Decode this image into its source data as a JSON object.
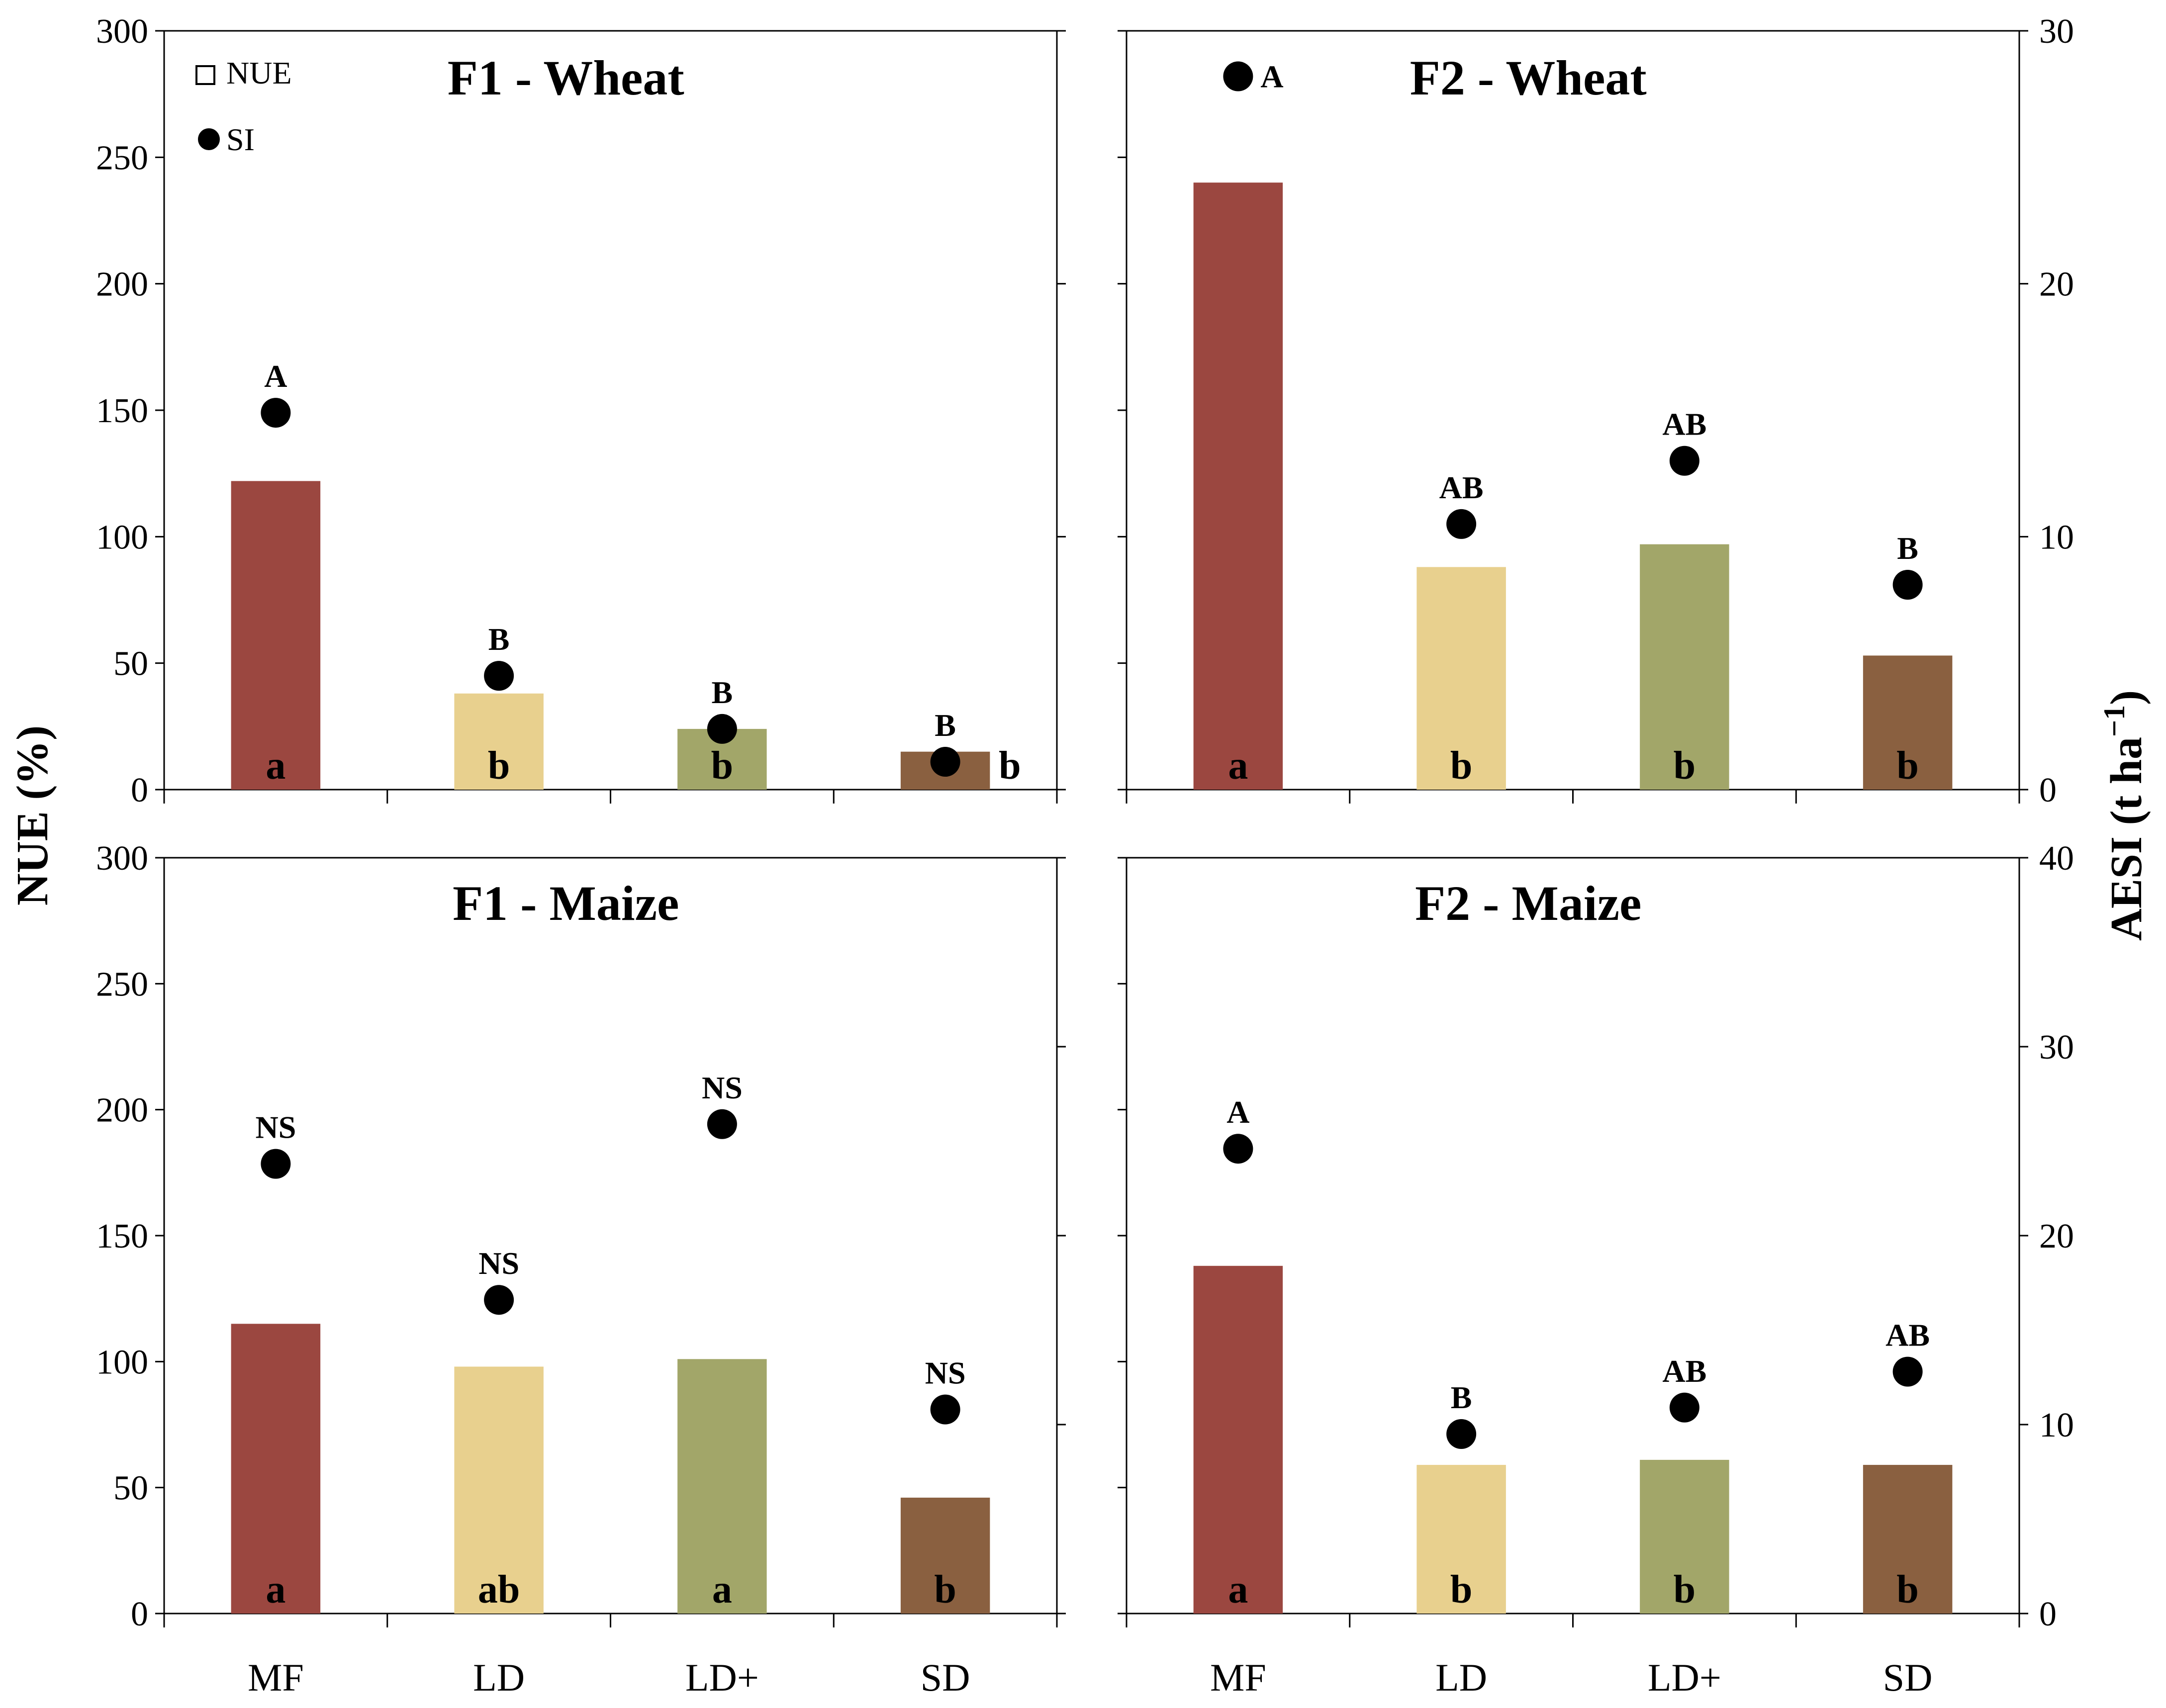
{
  "y_left_label": "NUE (%)",
  "y_right_label_main": "AESI (t ha",
  "y_right_label_sup": "−1",
  "y_right_label_close": ")",
  "legend": {
    "nue": "NUE",
    "si": "SI"
  },
  "colors": {
    "MF": "#9B4740",
    "LD": "#E8D08E",
    "LD+": "#A2A669",
    "SD": "#8A6040"
  },
  "chart_data": [
    {
      "type": "bar",
      "title": "F1 - Wheat",
      "categories": [
        "MF",
        "LD",
        "LD+",
        "SD"
      ],
      "series": [
        {
          "name": "NUE",
          "axis": "left",
          "values": [
            122,
            38,
            24,
            15
          ]
        },
        {
          "name": "SI",
          "axis": "right",
          "type": "scatter",
          "values": [
            14.9,
            4.5,
            2.4,
            1.1
          ]
        }
      ],
      "bar_letters": [
        "a",
        "b",
        "b",
        "b"
      ],
      "point_letters": [
        "A",
        "B",
        "B",
        "B"
      ],
      "ylim_left": [
        0,
        300
      ],
      "ylim_right": [
        0,
        30
      ],
      "yticks_left": [
        0,
        50,
        100,
        150,
        200,
        250,
        300
      ],
      "yticks_right": [
        0,
        10,
        20,
        30
      ]
    },
    {
      "type": "bar",
      "title": "F2 - Wheat",
      "categories": [
        "MF",
        "LD",
        "LD+",
        "SD"
      ],
      "series": [
        {
          "name": "NUE",
          "axis": "left",
          "values": [
            240,
            88,
            97,
            53
          ]
        },
        {
          "name": "SI",
          "axis": "right",
          "type": "scatter",
          "values": [
            28.2,
            10.5,
            13.0,
            8.1
          ]
        }
      ],
      "bar_letters": [
        "a",
        "b",
        "b",
        "b"
      ],
      "point_letters": [
        "A",
        "AB",
        "AB",
        "B"
      ],
      "ylim_left": [
        0,
        300
      ],
      "ylim_right": [
        0,
        30
      ],
      "yticks_left": [
        0,
        50,
        100,
        150,
        200,
        250,
        300
      ],
      "yticks_right": [
        0,
        10,
        20,
        30
      ]
    },
    {
      "type": "bar",
      "title": "F1 - Maize",
      "categories": [
        "MF",
        "LD",
        "LD+",
        "SD"
      ],
      "series": [
        {
          "name": "NUE",
          "axis": "left",
          "values": [
            115,
            98,
            101,
            46
          ]
        },
        {
          "name": "SI",
          "axis": "right",
          "type": "scatter",
          "values": [
            23.8,
            16.6,
            25.9,
            10.8
          ]
        }
      ],
      "bar_letters": [
        "a",
        "ab",
        "a",
        "b"
      ],
      "point_letters": [
        "NS",
        "NS",
        "NS",
        "NS"
      ],
      "ylim_left": [
        0,
        300
      ],
      "ylim_right": [
        0,
        40
      ],
      "yticks_left": [
        0,
        50,
        100,
        150,
        200,
        250,
        300
      ],
      "yticks_right": [
        0,
        10,
        20,
        30,
        40
      ]
    },
    {
      "type": "bar",
      "title": "F2 - Maize",
      "categories": [
        "MF",
        "LD",
        "LD+",
        "SD"
      ],
      "series": [
        {
          "name": "NUE",
          "axis": "left",
          "values": [
            138,
            59,
            61,
            59
          ]
        },
        {
          "name": "SI",
          "axis": "right",
          "type": "scatter",
          "values": [
            24.6,
            9.5,
            10.9,
            12.8
          ]
        }
      ],
      "bar_letters": [
        "a",
        "b",
        "b",
        "b"
      ],
      "point_letters": [
        "A",
        "B",
        "AB",
        "AB"
      ],
      "ylim_left": [
        0,
        300
      ],
      "ylim_right": [
        0,
        40
      ],
      "yticks_left": [
        0,
        50,
        100,
        150,
        200,
        250,
        300
      ],
      "yticks_right": [
        0,
        10,
        20,
        30,
        40
      ]
    }
  ]
}
